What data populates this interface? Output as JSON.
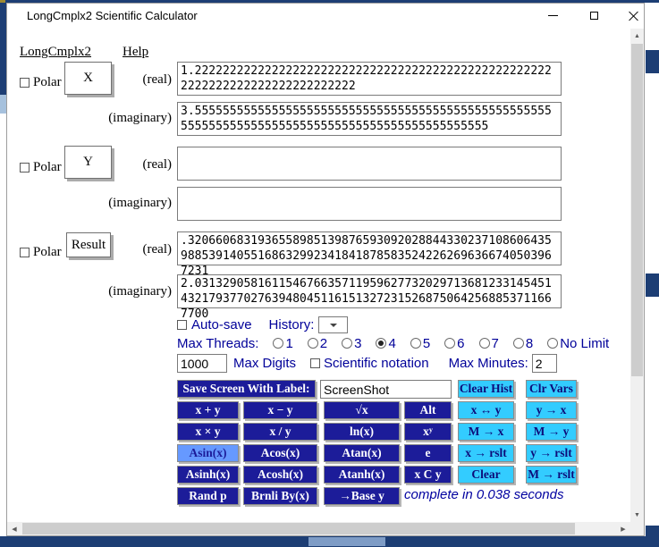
{
  "window": {
    "title": "LongCmplx2 Scientific Calculator"
  },
  "menu": {
    "items": [
      {
        "label": "LongCmplx2"
      },
      {
        "label": "Help"
      }
    ]
  },
  "variables": {
    "x": {
      "polar_label": "Polar",
      "button_label": "X",
      "real_label": "(real)",
      "imaginary_label": "(imaginary)",
      "real_value": "1.2222222222222222222222222222222222222222222222222222222222222222222222222222",
      "imaginary_value": "3.55555555555555555555555555555555555555555555555555555555555555555555555555555555555555555555555"
    },
    "y": {
      "polar_label": "Polar",
      "button_label": "Y",
      "real_label": "(real)",
      "imaginary_label": "(imaginary)",
      "real_value": "",
      "imaginary_value": ""
    },
    "result": {
      "polar_label": "Polar",
      "button_label": "Result",
      "real_label": "(real)",
      "imaginary_label": "(imaginary)",
      "real_value": ".3206606831936558985139876593092028844330237108606435988539140551686329923418418785835242262696366740503967231",
      "imaginary_value": "2.031329058161154676635711959627732029713681233145451432179377027639480451161513272315268750642568853711667700"
    }
  },
  "controls": {
    "autosave_label": "Auto-save",
    "history_label": "History:",
    "max_threads_label": "Max Threads:",
    "thread_options": [
      "1",
      "2",
      "3",
      "4",
      "5",
      "6",
      "7",
      "8",
      "No Limit"
    ],
    "selected_thread": "4",
    "max_digits_value": "1000",
    "max_digits_label": "Max Digits",
    "scientific_label": "Scientific notation",
    "max_minutes_label": "Max Minutes:",
    "max_minutes_value": "2"
  },
  "keypad": {
    "save_button": "Save Screen With Label:",
    "screenshot_input": "ScreenShot",
    "row0_buttons": [
      {
        "label": "Clear Hist",
        "style": "cyan"
      },
      {
        "label": "Clr Vars",
        "style": "cyan"
      }
    ],
    "rows": [
      [
        {
          "label": "x + y",
          "style": "navy"
        },
        {
          "label": "x − y",
          "style": "navy"
        },
        {
          "label": "√x",
          "style": "navy"
        },
        {
          "label": "Alt",
          "style": "navy"
        },
        {
          "label": "x ↔ y",
          "style": "cyan"
        },
        {
          "label": "y → x",
          "style": "cyan"
        }
      ],
      [
        {
          "label": "x × y",
          "style": "navy"
        },
        {
          "label": "x / y",
          "style": "navy"
        },
        {
          "label": "ln(x)",
          "style": "navy"
        },
        {
          "label": "xʸ",
          "style": "navy"
        },
        {
          "label": "M → x",
          "style": "cyan"
        },
        {
          "label": "M → y",
          "style": "cyan"
        }
      ],
      [
        {
          "label": "Asin(x)",
          "style": "highlight"
        },
        {
          "label": "Acos(x)",
          "style": "navy"
        },
        {
          "label": "Atan(x)",
          "style": "navy"
        },
        {
          "label": "e",
          "style": "navy"
        },
        {
          "label": "x → rslt",
          "style": "cyan"
        },
        {
          "label": "y → rslt",
          "style": "cyan"
        }
      ],
      [
        {
          "label": "Asinh(x)",
          "style": "navy"
        },
        {
          "label": "Acosh(x)",
          "style": "navy"
        },
        {
          "label": "Atanh(x)",
          "style": "navy"
        },
        {
          "label": "x C y",
          "style": "navy"
        },
        {
          "label": "Clear",
          "style": "cyan"
        },
        {
          "label": "M → rslt",
          "style": "cyan"
        }
      ],
      [
        {
          "label": "Rand p",
          "style": "navy"
        },
        {
          "label": "Brnli By(x)",
          "style": "navy"
        },
        {
          "label": "→Base y",
          "style": "navy"
        }
      ]
    ]
  },
  "status": {
    "text": "complete in 0.038 seconds"
  },
  "colors": {
    "navy_button": "#1c1c99",
    "cyan_button": "#33ccff",
    "highlighted_button": "#6699ff",
    "control_text": "#000099",
    "status_text": "#0000a0",
    "background_window": "#1d3e74"
  }
}
